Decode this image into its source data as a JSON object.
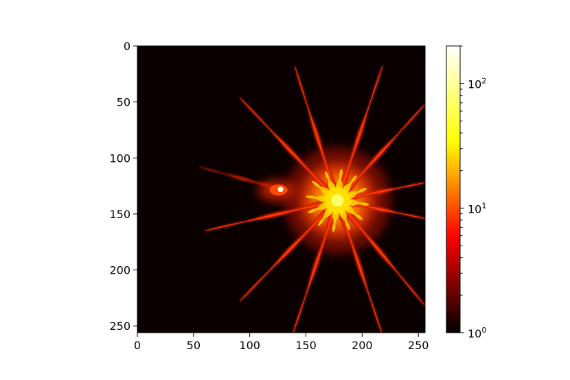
{
  "chart_data": {
    "type": "heatmap",
    "title": "",
    "xlabel": "",
    "ylabel": "",
    "image_size": [
      256,
      256
    ],
    "xlim": [
      0,
      256
    ],
    "ylim": [
      256,
      0
    ],
    "x_ticks": [
      0,
      50,
      100,
      150,
      200,
      250
    ],
    "y_ticks": [
      0,
      50,
      100,
      150,
      200,
      250
    ],
    "x_tick_labels": [
      "0",
      "50",
      "100",
      "150",
      "200",
      "250"
    ],
    "y_tick_labels": [
      "0",
      "50",
      "100",
      "150",
      "200",
      "250"
    ],
    "colormap": "hot",
    "colormap_stops": [
      "#000000",
      "#ff0000",
      "#ffff00",
      "#ffffff"
    ],
    "background_color": "#0b0000",
    "colorbar": {
      "scale": "log",
      "vmin": 1,
      "vmax": 200,
      "major_ticks": [
        1,
        10,
        100
      ],
      "tick_labels": [
        {
          "base": "10",
          "exp": "0"
        },
        {
          "base": "10",
          "exp": "1"
        },
        {
          "base": "10",
          "exp": "2"
        }
      ]
    },
    "features": {
      "main_star": {
        "center": [
          178,
          138
        ],
        "peak": 200,
        "spikes": [
          {
            "end": [
              140,
              18
            ]
          },
          {
            "end": [
              218,
              18
            ]
          },
          {
            "end": [
              256,
              52
            ]
          },
          {
            "end": [
              91,
              46
            ]
          },
          {
            "end": [
              256,
              122
            ]
          },
          {
            "end": [
              256,
              154
            ]
          },
          {
            "end": [
              256,
              232
            ]
          },
          {
            "end": [
              218,
              258
            ]
          },
          {
            "end": [
              138,
              258
            ]
          },
          {
            "end": [
              91,
              228
            ]
          },
          {
            "end": [
              60,
              165
            ]
          }
        ]
      },
      "secondary_source": {
        "center": [
          128,
          128
        ],
        "peak": 100,
        "tail_end": [
          55,
          108
        ]
      }
    }
  }
}
